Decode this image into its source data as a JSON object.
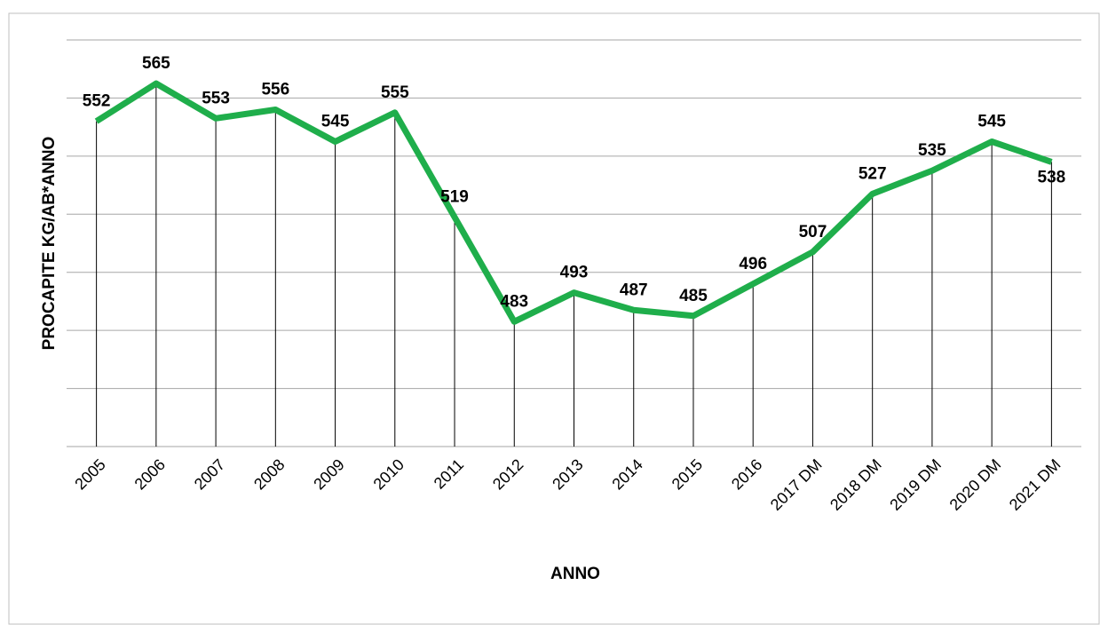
{
  "chart_data": {
    "type": "line",
    "y_label": "PROCAPITE KG/AB*ANNO",
    "x_label": "ANNO",
    "categories": [
      "2005",
      "2006",
      "2007",
      "2008",
      "2009",
      "2010",
      "2011",
      "2012",
      "2013",
      "2014",
      "2015",
      "2016",
      "2017 DM",
      "2018 DM",
      "2019 DM",
      "2020 DM",
      "2021 DM"
    ],
    "series": [
      {
        "color": "#1fae4b",
        "values": [
          552,
          565,
          553,
          556,
          545,
          555,
          519,
          483,
          493,
          487,
          485,
          496,
          507,
          527,
          535,
          545,
          538
        ]
      }
    ],
    "ylim": [
      440,
      580
    ],
    "yticks": [
      440,
      460,
      480,
      500,
      520,
      540,
      560,
      580
    ],
    "grid": true
  }
}
